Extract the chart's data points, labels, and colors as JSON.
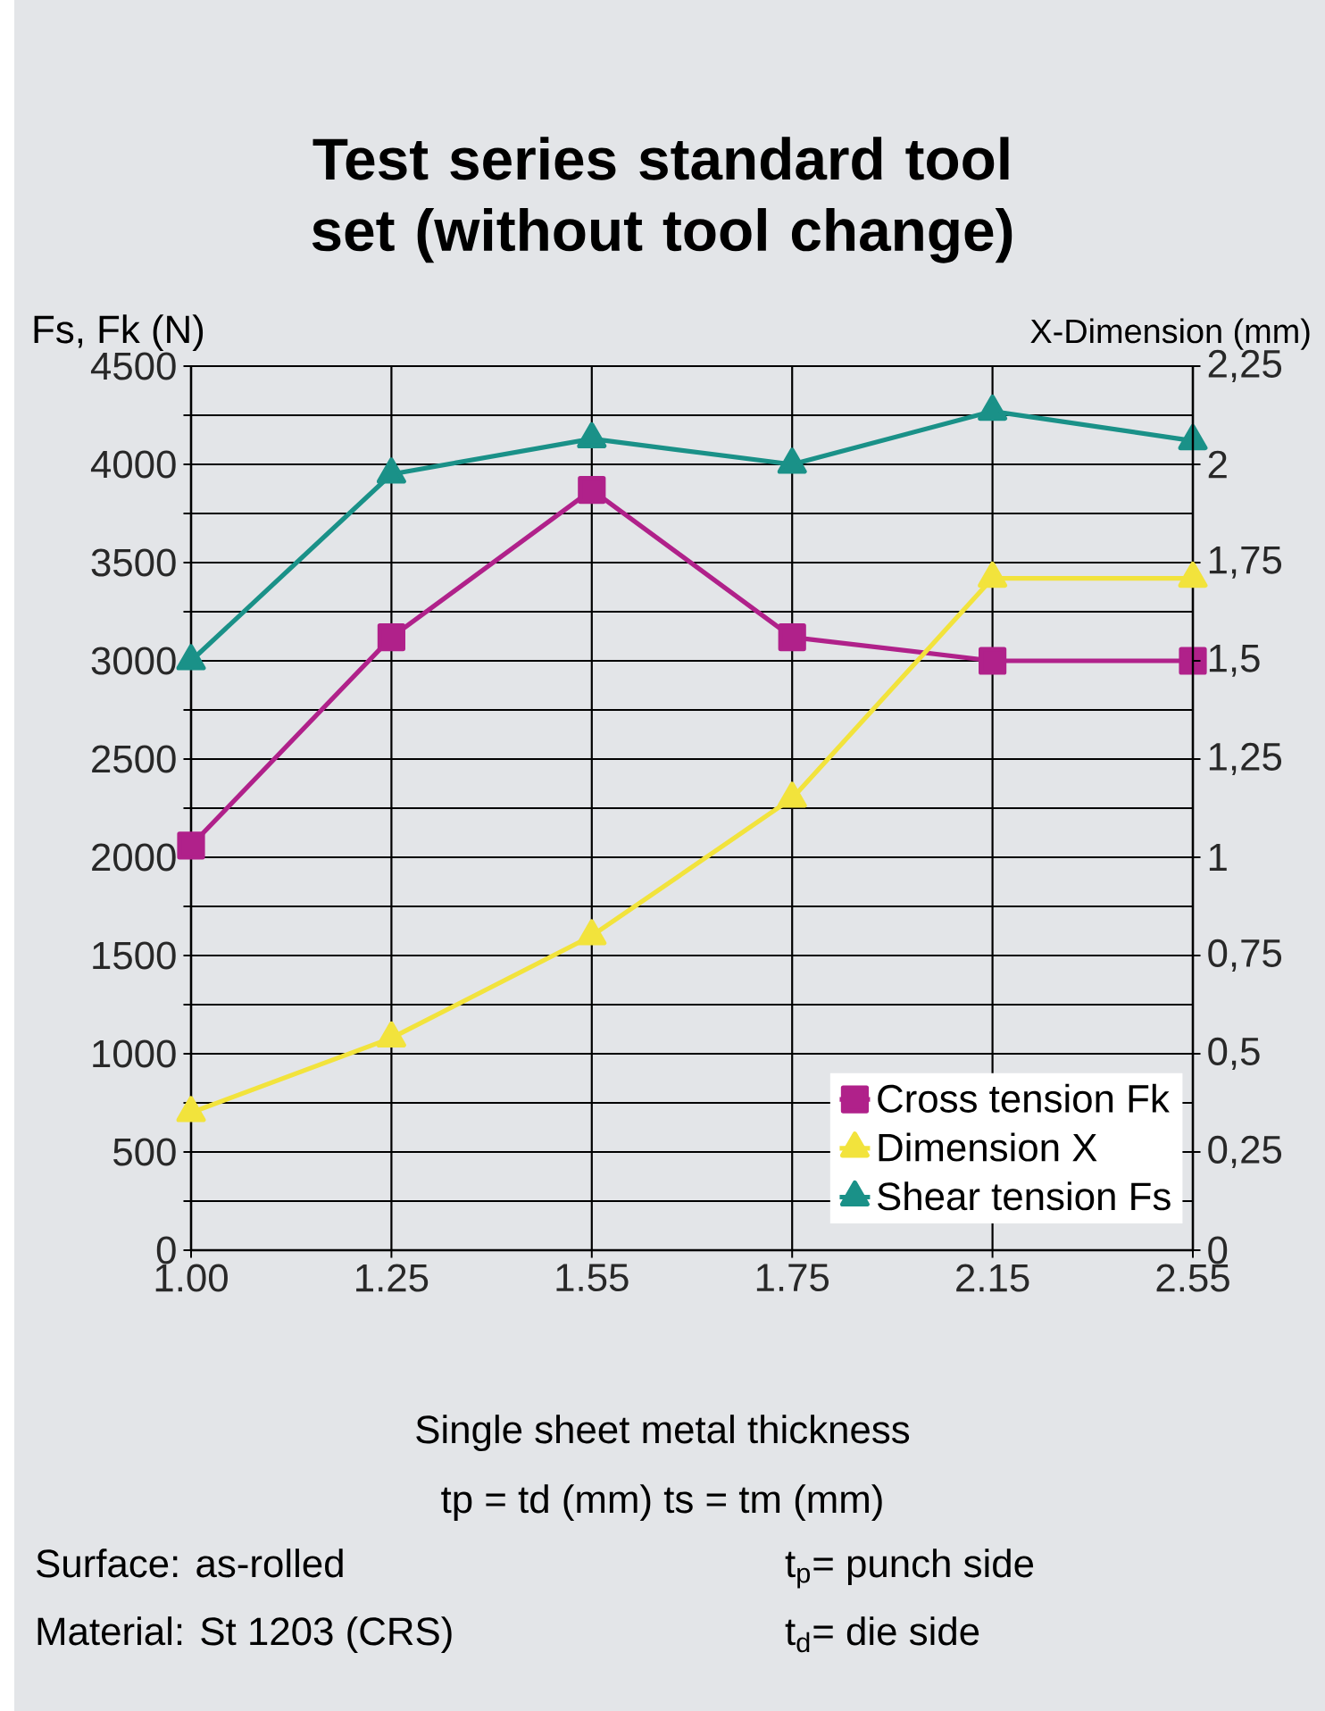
{
  "chart_data": {
    "type": "line",
    "title": "Test series standard tool set (without tool change)",
    "ylabel": "Fs, Fk (N)",
    "y2label": "X-Dimension (mm)",
    "xlabel": "Single sheet metal thickness",
    "categories": [
      "1.00",
      "1.25",
      "1.55",
      "1.75",
      "2.15",
      "2.55"
    ],
    "series": [
      {
        "name": "Cross tension Fk",
        "color": "#b0218a",
        "marker": "square",
        "values": [
          2060,
          3120,
          3870,
          3120,
          3000,
          3000
        ]
      },
      {
        "name": "Dimension X",
        "color": "#f2e33c",
        "marker": "triangle",
        "axis": "y2",
        "values": [
          0.35,
          0.54,
          0.8,
          1.15,
          1.71,
          1.71
        ]
      },
      {
        "name": "Shear tension Fs",
        "color": "#1a9188",
        "marker": "triangle",
        "values": [
          3000,
          3950,
          4130,
          4000,
          4270,
          4120
        ]
      }
    ],
    "ylim": [
      0,
      4500
    ],
    "yticks": [
      0,
      {
        "value": 250,
        "label": null
      },
      500,
      {
        "value": 750,
        "label": null
      },
      1000,
      {
        "value": 1250,
        "label": null
      },
      1500,
      {
        "value": 1750,
        "label": null
      },
      2000,
      {
        "value": 2250,
        "label": null
      },
      2500,
      {
        "value": 2750,
        "label": null
      },
      3000,
      {
        "value": 3250,
        "label": null
      },
      3500,
      {
        "value": 3750,
        "label": null
      },
      4000,
      {
        "value": 4250,
        "label": null
      },
      4500
    ],
    "y2lim": [
      0,
      2.25
    ],
    "y2ticks": [
      0,
      {
        "value": 0.25,
        "label": "0,25"
      },
      {
        "value": 0.5,
        "label": "0,5"
      },
      {
        "value": 0.75,
        "label": "0,75"
      },
      1,
      {
        "value": 1.25,
        "label": "1,25"
      },
      {
        "value": 1.5,
        "label": "1,5"
      },
      {
        "value": 1.75,
        "label": "1,75"
      },
      2,
      {
        "value": 2.25,
        "label": "2,25"
      }
    ],
    "grid": true,
    "legend": "bottom right",
    "line_style": "solid",
    "annotations": [
      "tp = td (mm) ts = tm (mm)",
      "Surface: as-rolled",
      "Material: St 1203 (CRS)",
      "t$_{p}$= punch side",
      "t$_{d}$= die side"
    ]
  }
}
